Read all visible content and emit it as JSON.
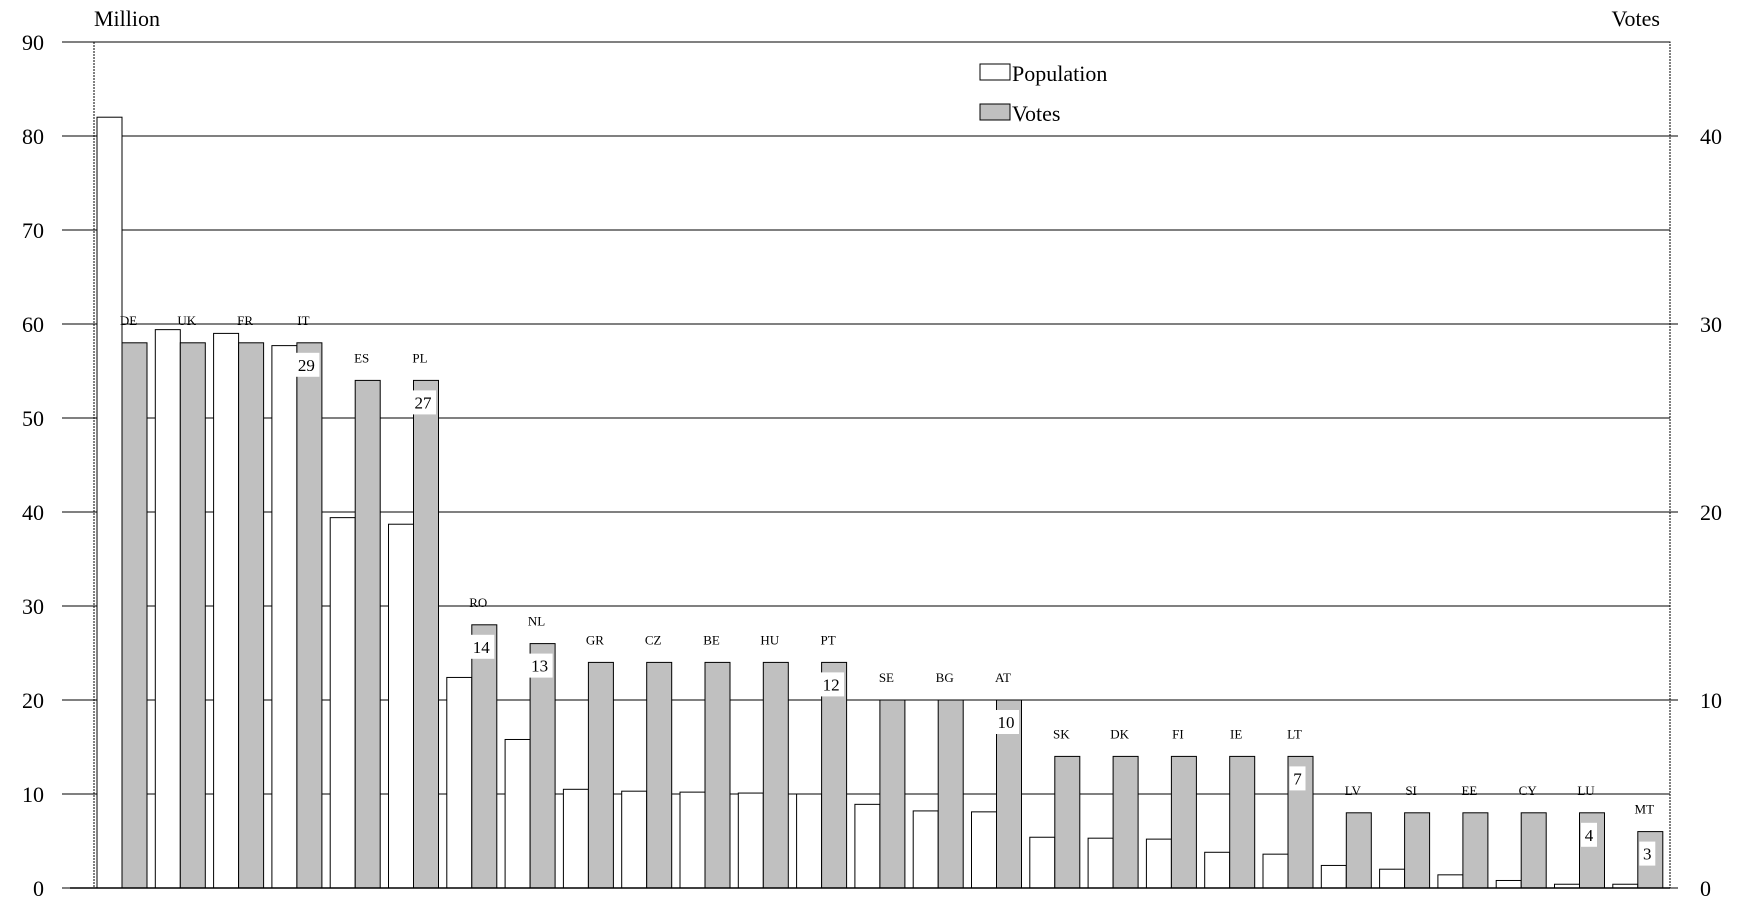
{
  "chart_data": {
    "type": "bar",
    "left_axis_label": "Million",
    "right_axis_label": "Votes",
    "left_ylim": [
      0,
      90
    ],
    "right_ylim": [
      0,
      45
    ],
    "left_ticks": [
      "0",
      "10",
      "20",
      "30",
      "40",
      "50",
      "60",
      "70",
      "80",
      "90"
    ],
    "right_ticks": [
      "0",
      "10",
      "20",
      "30",
      "40"
    ],
    "grid": true,
    "legend_position": "top-center",
    "categories": [
      "DE",
      "UK",
      "FR",
      "IT",
      "ES",
      "PL",
      "RO",
      "NL",
      "GR",
      "CZ",
      "BE",
      "HU",
      "PT",
      "SE",
      "BG",
      "AT",
      "SK",
      "DK",
      "FI",
      "IE",
      "LT",
      "LV",
      "SI",
      "EE",
      "CY",
      "LU",
      "MT"
    ],
    "series": [
      {
        "name": "Population",
        "axis": "left",
        "color": "#ffffff",
        "values": [
          82.0,
          59.4,
          59.0,
          57.7,
          39.4,
          38.7,
          22.4,
          15.8,
          10.5,
          10.3,
          10.2,
          10.1,
          10.0,
          8.9,
          8.2,
          8.1,
          5.4,
          5.3,
          5.2,
          3.8,
          3.6,
          2.4,
          2.0,
          1.4,
          0.8,
          0.4,
          0.4
        ]
      },
      {
        "name": "Votes",
        "axis": "right",
        "color": "#c0c0c0",
        "values": [
          29,
          29,
          29,
          29,
          27,
          27,
          14,
          13,
          12,
          12,
          12,
          12,
          12,
          10,
          10,
          10,
          7,
          7,
          7,
          7,
          7,
          4,
          4,
          4,
          4,
          4,
          3
        ]
      }
    ],
    "value_labels": [
      {
        "category": "IT",
        "text": "29"
      },
      {
        "category": "PL",
        "text": "27"
      },
      {
        "category": "RO",
        "text": "14"
      },
      {
        "category": "NL",
        "text": "13"
      },
      {
        "category": "PT",
        "text": "12"
      },
      {
        "category": "AT",
        "text": "10"
      },
      {
        "category": "LT",
        "text": "7"
      },
      {
        "category": "LU",
        "text": "4"
      },
      {
        "category": "MT",
        "text": "3"
      }
    ]
  }
}
